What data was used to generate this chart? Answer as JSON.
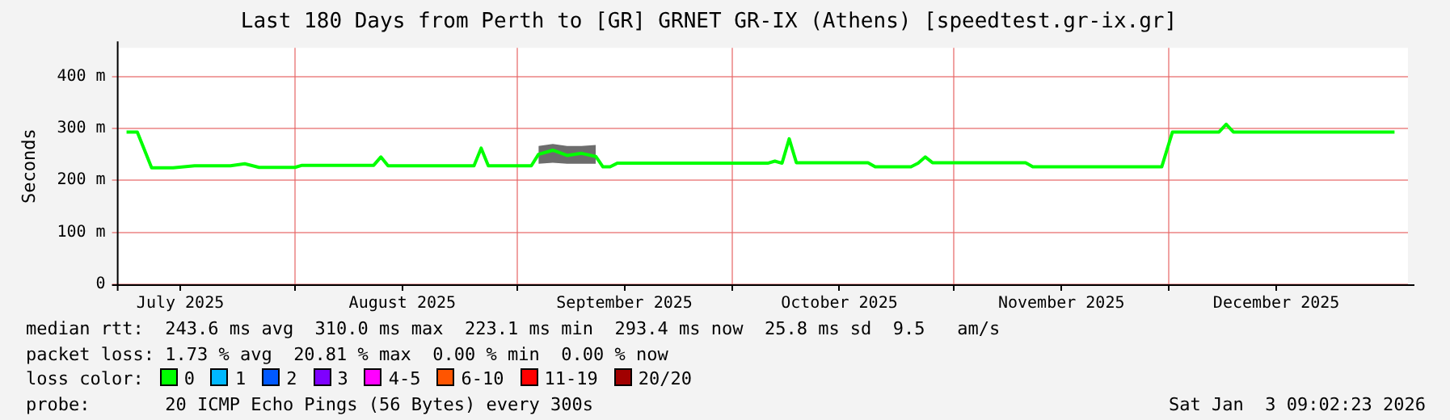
{
  "chart_data": {
    "type": "line",
    "title": "Last 180 Days from Perth to [GR] GRNET GR-IX (Athens) [speedtest.gr-ix.gr]",
    "ylabel": "Seconds",
    "x": [
      "2025-07-08T12:00",
      "2025-07-10",
      "2025-07-12",
      "2025-07-15",
      "2025-07-18",
      "2025-07-23",
      "2025-07-25",
      "2025-07-27",
      "2025-08-01",
      "2025-08-02",
      "2025-08-12",
      "2025-08-13",
      "2025-08-14",
      "2025-08-26",
      "2025-08-27",
      "2025-08-28",
      "2025-09-03",
      "2025-09-04",
      "2025-09-06",
      "2025-09-08",
      "2025-09-10",
      "2025-09-12",
      "2025-09-13",
      "2025-09-14",
      "2025-09-15",
      "2025-10-06",
      "2025-10-07",
      "2025-10-08",
      "2025-10-09",
      "2025-10-10",
      "2025-10-20",
      "2025-10-21",
      "2025-10-26",
      "2025-10-27",
      "2025-10-28",
      "2025-10-29",
      "2025-11-11",
      "2025-11-12",
      "2025-11-30",
      "2025-12-01T12:00",
      "2025-12-08",
      "2025-12-09",
      "2025-12-10",
      "2026-01-01T12:00"
    ],
    "series": [
      {
        "color": "#00ff00",
        "values": [
          293,
          293,
          224,
          224,
          228,
          228,
          232,
          225,
          225,
          229,
          229,
          245,
          228,
          228,
          262,
          228,
          228,
          250,
          258,
          248,
          252,
          246,
          226,
          226,
          233,
          233,
          237,
          233,
          280,
          234,
          234,
          226,
          226,
          233,
          245,
          234,
          234,
          226,
          226,
          293,
          293,
          308,
          293,
          293
        ],
        "lower": [
          null,
          null,
          null,
          null,
          null,
          null,
          null,
          null,
          null,
          null,
          null,
          null,
          null,
          null,
          null,
          null,
          null,
          232,
          234,
          232,
          232,
          232,
          null,
          null,
          null,
          null,
          null,
          null,
          null,
          null,
          null,
          null,
          null,
          null,
          null,
          null,
          null,
          null,
          null,
          null,
          null,
          null,
          null,
          null
        ],
        "upper": [
          null,
          null,
          null,
          null,
          null,
          null,
          null,
          null,
          null,
          null,
          null,
          null,
          null,
          null,
          null,
          null,
          null,
          266,
          270,
          266,
          266,
          268,
          null,
          null,
          null,
          null,
          null,
          null,
          null,
          null,
          null,
          null,
          null,
          null,
          null,
          null,
          null,
          null,
          null,
          null,
          null,
          null,
          null,
          null
        ]
      }
    ],
    "xlim": [
      "2025-07-07T09:00",
      "2026-01-03T09:00"
    ],
    "xticks": [
      {
        "value": "2025-07-16",
        "label": "July 2025"
      },
      {
        "value": "2025-08-01",
        "label": null
      },
      {
        "value": "2025-08-16",
        "label": "August 2025"
      },
      {
        "value": "2025-09-01",
        "label": null
      },
      {
        "value": "2025-09-16",
        "label": "September 2025"
      },
      {
        "value": "2025-10-01",
        "label": null
      },
      {
        "value": "2025-10-16",
        "label": "October 2025"
      },
      {
        "value": "2025-11-01",
        "label": null
      },
      {
        "value": "2025-11-16",
        "label": "November 2025"
      },
      {
        "value": "2025-12-01",
        "label": null
      },
      {
        "value": "2025-12-16",
        "label": "December 2025"
      }
    ],
    "ylim": [
      0,
      455
    ],
    "yticks": [
      {
        "value": 0,
        "label": "0"
      },
      {
        "value": 100,
        "label": "100 m"
      },
      {
        "value": 200,
        "label": "200 m"
      },
      {
        "value": 300,
        "label": "300 m"
      },
      {
        "value": 400,
        "label": "400 m"
      }
    ],
    "grid": true,
    "legend": false,
    "marker": "none",
    "line_style": "solid",
    "annotations": [
      "median rtt:  243.6 ms avg  310.0 ms max  223.1 ms min  293.4 ms now  25.8 ms sd  9.5   am/s",
      "packet loss: 1.73 % avg  20.81 % max  0.00 % min  0.00 % now",
      "loss color:",
      "0",
      "1",
      "2",
      "3",
      "4-5",
      "6-10",
      "11-19",
      "20/20",
      "probe:       20 ICMP Echo Pings (56 Bytes) every 300s",
      "Sat Jan  3 09:02:23 2026"
    ]
  }
}
